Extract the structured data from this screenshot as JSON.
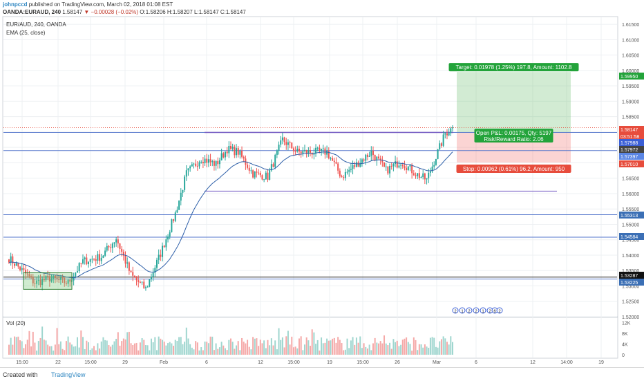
{
  "header": {
    "author": "johnpccd",
    "published_text": "published on TradingView.com, March 02, 2018 01:08 EST",
    "symbol": "OANDA:EURAUD, 240",
    "last": "1.58147",
    "change": "▼ −0.00028 (−0.02%)",
    "open": "O:1.58206",
    "high": "H:1.58207",
    "low": "L:1.58147",
    "close": "C:1.58147"
  },
  "legend": {
    "symbol_line": "EUR/AUD, 240, OANDA",
    "indicator_line": "EMA (25, close)"
  },
  "volume_panel": {
    "label": "Vol (20)",
    "axis_labels": [
      "12K",
      "8K",
      "4K",
      "0"
    ]
  },
  "footer": {
    "created_with": "Created with",
    "brand": "TradingView"
  },
  "chart_data": {
    "type": "candlestick",
    "symbol": "EUR/AUD",
    "timeframe": "240",
    "x_tick_labels": [
      "15:00",
      "22",
      "15:00",
      "29",
      "Feb",
      "6",
      "12",
      "15:00",
      "19",
      "15:00",
      "26",
      "Mar",
      "6",
      "12",
      "14:00",
      "19"
    ],
    "y_tick_labels": [
      "1.61500",
      "1.61000",
      "1.60500",
      "1.60000",
      "1.59500",
      "1.59000",
      "1.58500",
      "1.58000",
      "1.57500",
      "1.57000",
      "1.56500",
      "1.56000",
      "1.55500",
      "1.55000",
      "1.54500",
      "1.54000",
      "1.53500",
      "1.53000",
      "1.52500",
      "1.52000"
    ],
    "ylim": [
      1.52,
      1.6175
    ],
    "price_tags": [
      {
        "text": "1.59950",
        "color": "#23a33a"
      },
      {
        "text": "1.58147",
        "color": "#e74c3c"
      },
      {
        "text": "03:51:58",
        "color": "#e74c3c"
      },
      {
        "text": "1.57988",
        "color": "#3b5fd6"
      },
      {
        "text": "1.57972",
        "color": "#444444"
      },
      {
        "text": "1.57397",
        "color": "#5b86e5"
      },
      {
        "text": "1.57010",
        "color": "#e74c3c"
      },
      {
        "text": "1.55313",
        "color": "#3b6fb5"
      },
      {
        "text": "1.54584",
        "color": "#3b6fb5"
      },
      {
        "text": "1.53287",
        "color": "#111111"
      },
      {
        "text": "1.53225",
        "color": "#3b6fb5"
      }
    ],
    "horizontal_levels": [
      1.57988,
      1.57397,
      1.55313,
      1.54584,
      1.53287,
      1.53225
    ],
    "position": {
      "entry": 1.57972,
      "target": 1.5995,
      "stop": 1.5701,
      "target_label": "Target: 0.01978 (1.25%) 197.8, Amount: 1102.8",
      "stop_label": "Stop: 0.00962 (0.61%) 96.2, Amount: 950",
      "pnl_label": "Open P&L: 0.00175, Qty: 5197",
      "ratio_label": "Risk/Reward Ratio: 2.06"
    },
    "event_markers": [
      "2",
      "1",
      "2",
      "2",
      "1",
      "2",
      "6",
      "2"
    ],
    "colors": {
      "up": "#26a69a",
      "down": "#ef5350",
      "ema": "#2d5fa8"
    },
    "anchors": [
      [
        0,
        1.539
      ],
      [
        8,
        1.5345
      ],
      [
        14,
        1.531
      ],
      [
        22,
        1.5325
      ],
      [
        32,
        1.531
      ],
      [
        40,
        1.538
      ],
      [
        50,
        1.5395
      ],
      [
        58,
        1.5455
      ],
      [
        66,
        1.5335
      ],
      [
        74,
        1.529
      ],
      [
        82,
        1.5405
      ],
      [
        90,
        1.5535
      ],
      [
        96,
        1.5665
      ],
      [
        104,
        1.5715
      ],
      [
        112,
        1.5695
      ],
      [
        118,
        1.5745
      ],
      [
        124,
        1.5735
      ],
      [
        132,
        1.5665
      ],
      [
        140,
        1.5655
      ],
      [
        148,
        1.5775
      ],
      [
        156,
        1.5735
      ],
      [
        164,
        1.5735
      ],
      [
        172,
        1.5735
      ],
      [
        180,
        1.5655
      ],
      [
        188,
        1.5695
      ],
      [
        196,
        1.5735
      ],
      [
        204,
        1.5675
      ],
      [
        212,
        1.5705
      ],
      [
        220,
        1.5665
      ],
      [
        226,
        1.5645
      ],
      [
        232,
        1.5735
      ],
      [
        236,
        1.5795
      ],
      [
        240,
        1.5814
      ]
    ]
  }
}
